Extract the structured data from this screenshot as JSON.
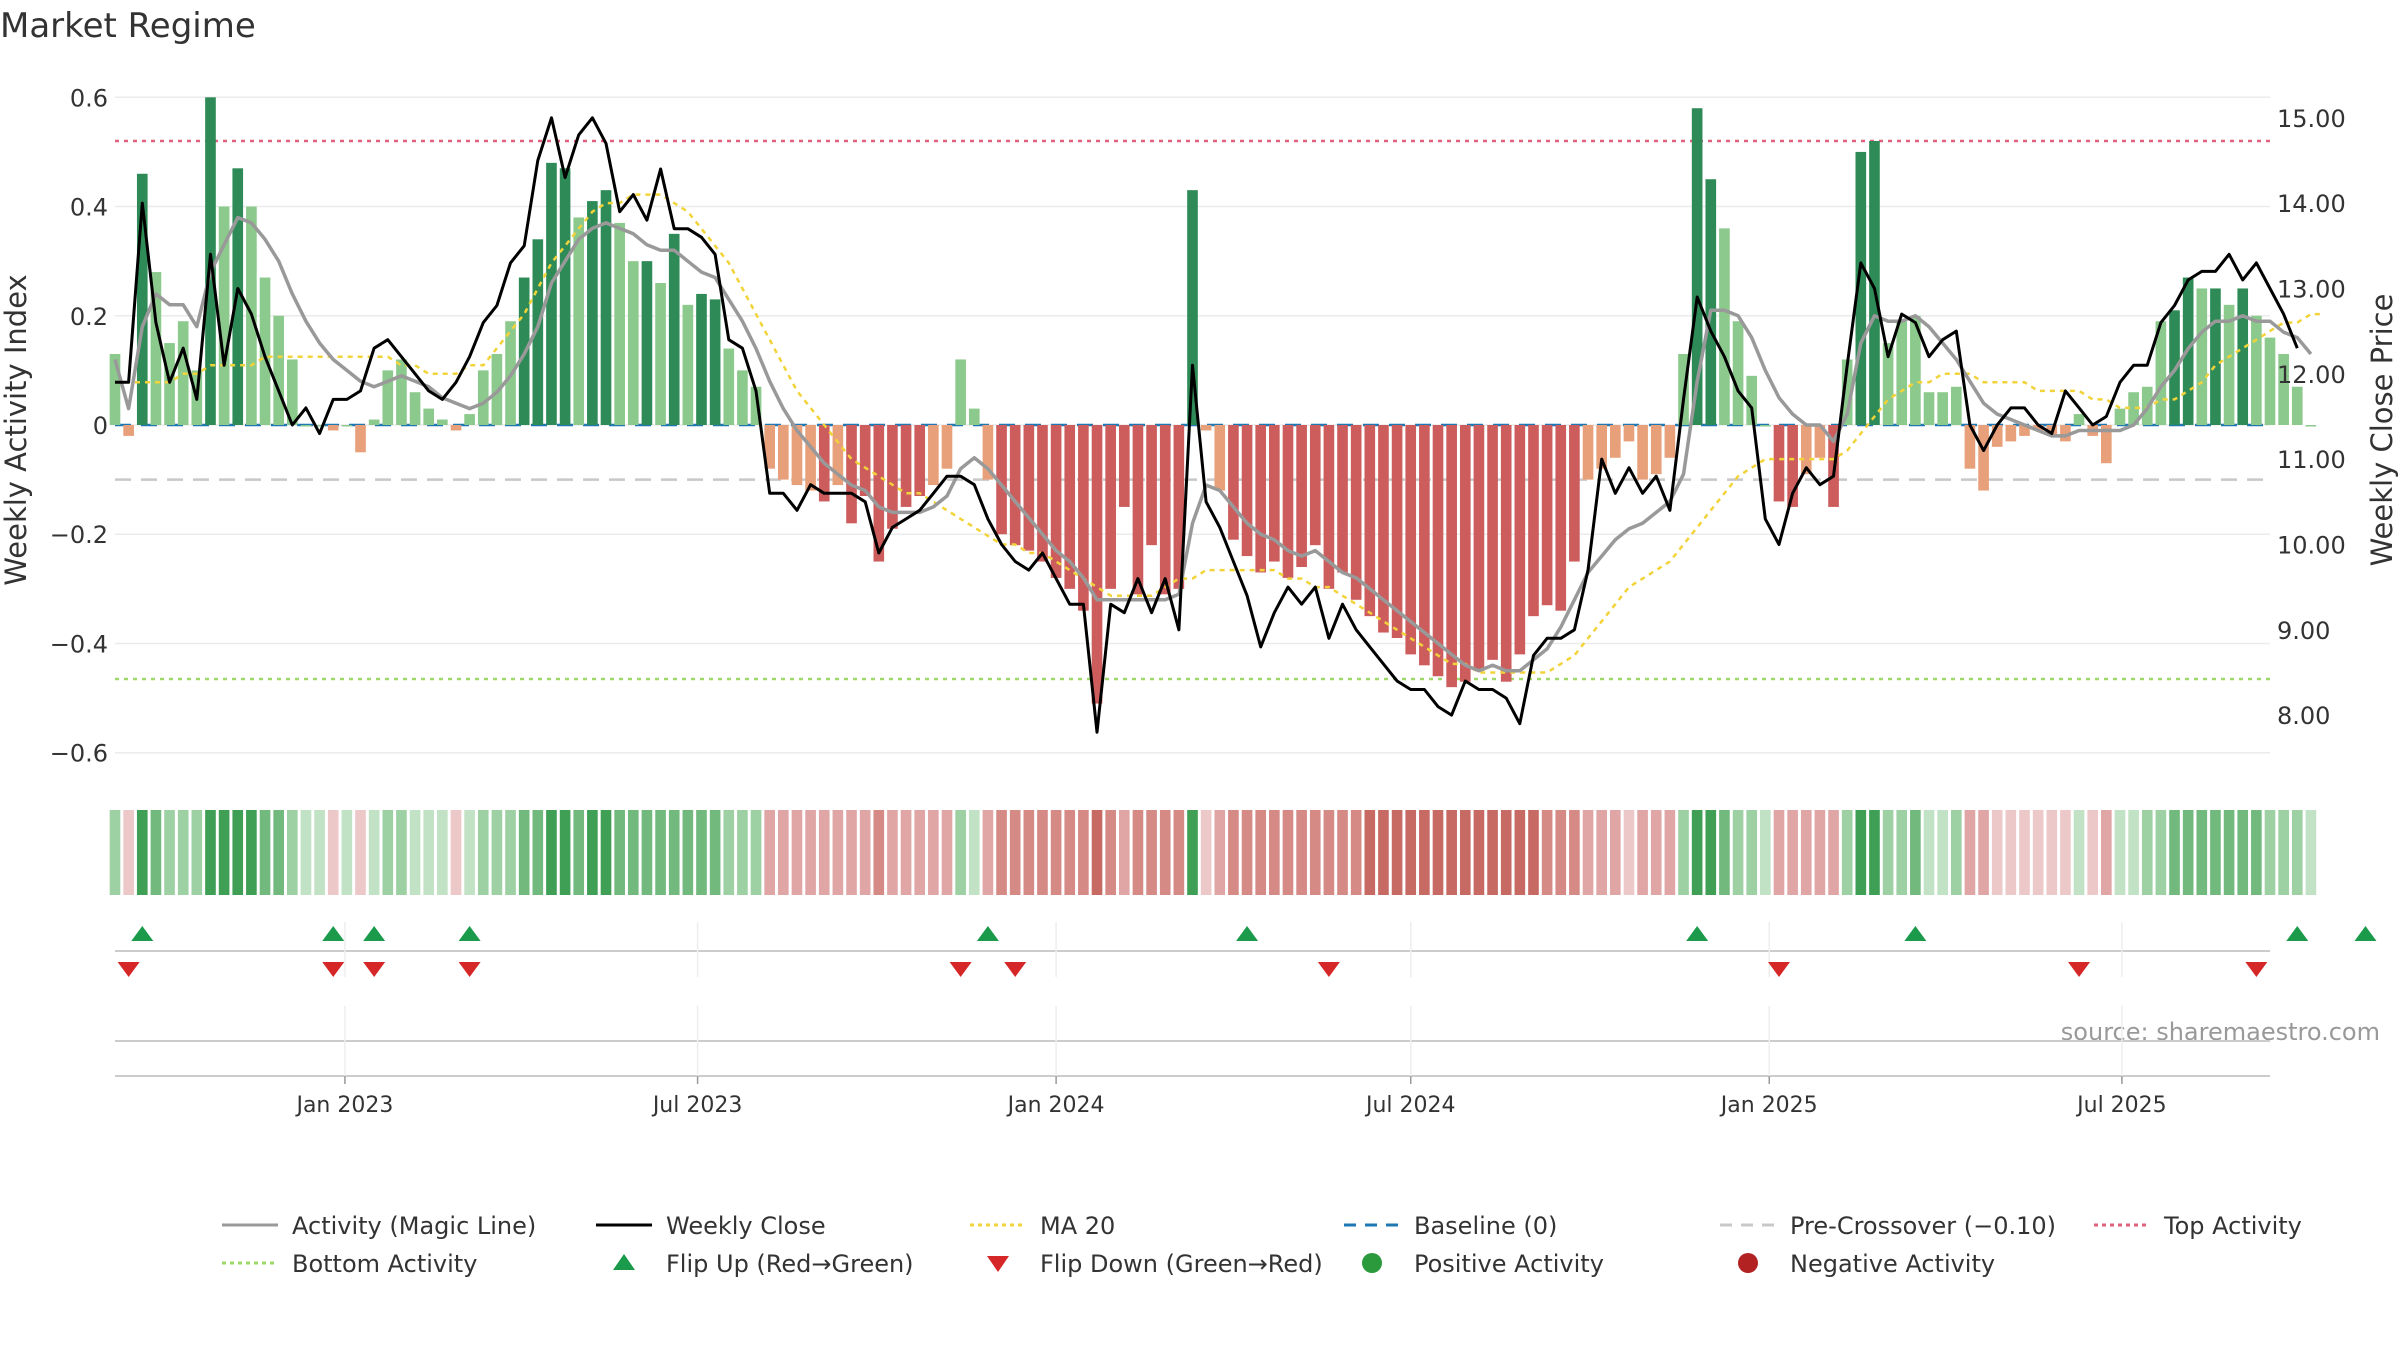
{
  "chart_data": {
    "type": "bar",
    "title": "Market Regime",
    "ylabel_left": "Weekly Activity Index",
    "ylabel_right": "Weekly Close Price",
    "source": "source: sharemaestro.com",
    "ylim_left": [
      -0.65,
      0.65
    ],
    "ylim_right": [
      7.24,
      15.56
    ],
    "yticks_left": [
      {
        "v": 0.6,
        "label": "0.6"
      },
      {
        "v": 0.4,
        "label": "0.4"
      },
      {
        "v": 0.2,
        "label": "0.2"
      },
      {
        "v": 0,
        "label": "0"
      },
      {
        "v": -0.2,
        "label": "−0.2"
      },
      {
        "v": -0.4,
        "label": "−0.4"
      },
      {
        "v": -0.6,
        "label": "−0.6"
      }
    ],
    "yticks_right": [
      {
        "v": 15,
        "label": "15.00"
      },
      {
        "v": 14,
        "label": "14.00"
      },
      {
        "v": 13,
        "label": "13.00"
      },
      {
        "v": 12,
        "label": "12.00"
      },
      {
        "v": 11,
        "label": "11.00"
      },
      {
        "v": 10,
        "label": "10.00"
      },
      {
        "v": 9,
        "label": "9.00"
      },
      {
        "v": 8,
        "label": "8.00"
      }
    ],
    "x_start": "2022-09-05",
    "x_end": "2025-09-15",
    "xticks": [
      {
        "date": "2023-01-01",
        "label": "Jan 2023"
      },
      {
        "date": "2023-07-01",
        "label": "Jul 2023"
      },
      {
        "date": "2024-01-01",
        "label": "Jan 2024"
      },
      {
        "date": "2024-07-01",
        "label": "Jul 2024"
      },
      {
        "date": "2025-01-01",
        "label": "Jan 2025"
      },
      {
        "date": "2025-07-01",
        "label": "Jul 2025"
      }
    ],
    "first_week": "2022-09-05",
    "week_step_days": 7,
    "activity": [
      0.13,
      -0.02,
      0.46,
      0.28,
      0.15,
      0.19,
      0.1,
      0.6,
      0.4,
      0.47,
      0.4,
      0.27,
      0.2,
      0.12,
      0.0,
      0.0,
      -0.01,
      0.0,
      -0.05,
      0.01,
      0.1,
      0.12,
      0.06,
      0.03,
      0.01,
      -0.01,
      0.02,
      0.1,
      0.13,
      0.19,
      0.27,
      0.34,
      0.48,
      0.47,
      0.38,
      0.41,
      0.43,
      0.37,
      0.3,
      0.3,
      0.26,
      0.35,
      0.22,
      0.24,
      0.23,
      0.14,
      0.1,
      0.07,
      -0.08,
      -0.1,
      -0.11,
      -0.12,
      -0.14,
      -0.11,
      -0.18,
      -0.13,
      -0.25,
      -0.19,
      -0.15,
      -0.13,
      -0.11,
      -0.08,
      0.12,
      0.03,
      -0.1,
      -0.2,
      -0.22,
      -0.23,
      -0.25,
      -0.28,
      -0.3,
      -0.34,
      -0.51,
      -0.3,
      -0.15,
      -0.31,
      -0.22,
      -0.31,
      -0.3,
      0.43,
      -0.01,
      -0.12,
      -0.21,
      -0.24,
      -0.27,
      -0.25,
      -0.28,
      -0.26,
      -0.22,
      -0.3,
      -0.27,
      -0.32,
      -0.35,
      -0.38,
      -0.39,
      -0.42,
      -0.44,
      -0.46,
      -0.48,
      -0.47,
      -0.45,
      -0.43,
      -0.47,
      -0.42,
      -0.35,
      -0.33,
      -0.34,
      -0.25,
      -0.1,
      -0.08,
      -0.06,
      -0.03,
      -0.1,
      -0.09,
      -0.06,
      0.13,
      0.58,
      0.45,
      0.36,
      0.19,
      0.09,
      0.0,
      -0.14,
      -0.15,
      -0.09,
      -0.06,
      -0.15,
      0.12,
      0.5,
      0.52,
      0.15,
      0.19,
      0.2,
      0.06,
      0.06,
      0.07,
      -0.08,
      -0.12,
      -0.04,
      -0.03,
      -0.02,
      -0.01,
      -0.02,
      -0.03,
      0.02,
      -0.02,
      -0.07,
      0.03,
      0.06,
      0.07,
      0.19,
      0.21,
      0.27,
      0.25,
      0.25,
      0.22,
      0.25,
      0.2,
      0.16,
      0.13,
      0.07,
      0.0
    ],
    "close": [
      11.9,
      11.9,
      14.0,
      12.6,
      11.9,
      12.3,
      11.7,
      13.4,
      12.1,
      13.0,
      12.7,
      12.2,
      11.8,
      11.4,
      11.6,
      11.3,
      11.7,
      11.7,
      11.8,
      12.3,
      12.4,
      12.2,
      12.0,
      11.8,
      11.7,
      11.9,
      12.2,
      12.6,
      12.8,
      13.3,
      13.5,
      14.5,
      15.0,
      14.3,
      14.8,
      15.0,
      14.7,
      13.9,
      14.1,
      13.8,
      14.4,
      13.7,
      13.7,
      13.6,
      13.4,
      12.4,
      12.3,
      11.8,
      10.6,
      10.6,
      10.4,
      10.7,
      10.6,
      10.6,
      10.6,
      10.5,
      9.9,
      10.2,
      10.3,
      10.4,
      10.6,
      10.8,
      10.8,
      10.7,
      10.3,
      10.0,
      9.8,
      9.7,
      9.9,
      9.6,
      9.3,
      9.3,
      7.8,
      9.3,
      9.2,
      9.6,
      9.2,
      9.6,
      9.0,
      12.1,
      10.5,
      10.2,
      9.8,
      9.4,
      8.8,
      9.2,
      9.5,
      9.3,
      9.5,
      8.9,
      9.3,
      9.0,
      8.8,
      8.6,
      8.4,
      8.3,
      8.3,
      8.1,
      8.0,
      8.4,
      8.3,
      8.3,
      8.2,
      7.9,
      8.7,
      8.9,
      8.9,
      9.0,
      9.7,
      11.0,
      10.6,
      10.9,
      10.6,
      10.8,
      10.4,
      11.7,
      12.9,
      12.5,
      12.2,
      11.8,
      11.6,
      10.3,
      10.0,
      10.6,
      10.9,
      10.7,
      10.8,
      12.1,
      13.3,
      13.0,
      12.2,
      12.7,
      12.6,
      12.2,
      12.4,
      12.5,
      11.4,
      11.1,
      11.4,
      11.6,
      11.6,
      11.4,
      11.3,
      11.8,
      11.6,
      11.4,
      11.5,
      11.9,
      12.1,
      12.1,
      12.6,
      12.8,
      13.1,
      13.2,
      13.2,
      13.4,
      13.1,
      13.3,
      13.0,
      12.7,
      12.3
    ],
    "ma20": [
      11.9,
      11.9,
      11.9,
      11.9,
      11.9,
      12.0,
      12.0,
      12.1,
      12.1,
      12.1,
      12.1,
      12.2,
      12.2,
      12.2,
      12.2,
      12.2,
      12.2,
      12.2,
      12.2,
      12.2,
      12.2,
      12.1,
      12.1,
      12.0,
      12.0,
      12.0,
      12.1,
      12.1,
      12.3,
      12.5,
      12.7,
      13.0,
      13.3,
      13.5,
      13.7,
      13.9,
      14.0,
      14.0,
      14.1,
      14.1,
      14.1,
      14.0,
      13.9,
      13.7,
      13.5,
      13.3,
      13.0,
      12.7,
      12.4,
      12.1,
      11.8,
      11.6,
      11.4,
      11.2,
      11.0,
      10.9,
      10.8,
      10.7,
      10.6,
      10.6,
      10.5,
      10.4,
      10.3,
      10.2,
      10.1,
      10.0,
      10.0,
      9.9,
      9.9,
      9.8,
      9.7,
      9.6,
      9.5,
      9.4,
      9.4,
      9.4,
      9.4,
      9.5,
      9.6,
      9.6,
      9.7,
      9.7,
      9.7,
      9.7,
      9.7,
      9.7,
      9.6,
      9.6,
      9.5,
      9.5,
      9.4,
      9.3,
      9.2,
      9.1,
      9.0,
      8.9,
      8.8,
      8.7,
      8.6,
      8.6,
      8.5,
      8.5,
      8.5,
      8.5,
      8.5,
      8.5,
      8.6,
      8.7,
      8.9,
      9.1,
      9.3,
      9.5,
      9.6,
      9.7,
      9.8,
      10.0,
      10.2,
      10.4,
      10.6,
      10.8,
      10.9,
      11.0,
      11.0,
      11.0,
      11.0,
      11.0,
      11.0,
      11.1,
      11.3,
      11.5,
      11.7,
      11.8,
      11.9,
      11.9,
      12.0,
      12.0,
      12.0,
      11.9,
      11.9,
      11.9,
      11.9,
      11.8,
      11.8,
      11.8,
      11.8,
      11.7,
      11.7,
      11.6,
      11.6,
      11.6,
      11.7,
      11.7,
      11.8,
      11.9,
      12.1,
      12.2,
      12.3,
      12.4,
      12.5,
      12.6,
      12.6,
      12.7,
      12.7
    ],
    "magic_line": [
      0.12,
      0.03,
      0.18,
      0.24,
      0.22,
      0.22,
      0.18,
      0.28,
      0.33,
      0.38,
      0.37,
      0.34,
      0.3,
      0.24,
      0.19,
      0.15,
      0.12,
      0.1,
      0.08,
      0.07,
      0.08,
      0.09,
      0.08,
      0.07,
      0.05,
      0.04,
      0.03,
      0.04,
      0.06,
      0.09,
      0.13,
      0.18,
      0.26,
      0.3,
      0.34,
      0.36,
      0.37,
      0.36,
      0.35,
      0.33,
      0.32,
      0.32,
      0.3,
      0.28,
      0.27,
      0.23,
      0.19,
      0.14,
      0.08,
      0.03,
      -0.01,
      -0.04,
      -0.07,
      -0.09,
      -0.11,
      -0.12,
      -0.15,
      -0.16,
      -0.16,
      -0.16,
      -0.15,
      -0.13,
      -0.08,
      -0.06,
      -0.08,
      -0.11,
      -0.14,
      -0.17,
      -0.2,
      -0.23,
      -0.25,
      -0.28,
      -0.32,
      -0.32,
      -0.32,
      -0.32,
      -0.32,
      -0.32,
      -0.31,
      -0.18,
      -0.11,
      -0.12,
      -0.15,
      -0.18,
      -0.2,
      -0.21,
      -0.23,
      -0.24,
      -0.23,
      -0.25,
      -0.27,
      -0.28,
      -0.3,
      -0.32,
      -0.34,
      -0.36,
      -0.38,
      -0.4,
      -0.42,
      -0.44,
      -0.45,
      -0.44,
      -0.45,
      -0.45,
      -0.43,
      -0.41,
      -0.37,
      -0.32,
      -0.27,
      -0.24,
      -0.21,
      -0.19,
      -0.18,
      -0.16,
      -0.14,
      -0.09,
      0.08,
      0.21,
      0.21,
      0.2,
      0.16,
      0.1,
      0.05,
      0.02,
      0.0,
      0.0,
      -0.03,
      0.02,
      0.15,
      0.2,
      0.19,
      0.19,
      0.2,
      0.18,
      0.15,
      0.12,
      0.08,
      0.04,
      0.02,
      0.01,
      0.0,
      -0.01,
      -0.02,
      -0.02,
      -0.01,
      -0.01,
      -0.01,
      -0.01,
      0.0,
      0.03,
      0.07,
      0.1,
      0.14,
      0.17,
      0.19,
      0.19,
      0.2,
      0.19,
      0.19,
      0.17,
      0.16,
      0.13
    ],
    "levels": {
      "baseline": 0,
      "pre_crossover": -0.1,
      "top": 0.52,
      "bottom": -0.465
    },
    "flip_up_weeks": [
      2,
      16,
      19,
      26,
      64,
      83,
      116,
      132,
      160,
      165
    ],
    "flip_down_weeks": [
      1,
      16,
      19,
      26,
      62,
      66,
      89,
      122,
      144,
      157
    ],
    "legend": [
      {
        "label": "Activity (Magic Line)",
        "kind": "line",
        "color": "#999999"
      },
      {
        "label": "Weekly Close",
        "kind": "line",
        "color": "#000000"
      },
      {
        "label": "MA 20",
        "kind": "dotted",
        "color": "#f2d33a"
      },
      {
        "label": "Baseline (0)",
        "kind": "dashed",
        "color": "#1f77b4"
      },
      {
        "label": "Pre-Crossover (−0.10)",
        "kind": "dashed",
        "color": "#c8c8c8"
      },
      {
        "label": "Top Activity",
        "kind": "dotted",
        "color": "#e0607e"
      },
      {
        "label": "Bottom Activity",
        "kind": "dotted",
        "color": "#9fd86a"
      },
      {
        "label": "Flip Up (Red→Green)",
        "kind": "tri-up",
        "color": "#1a9a4a"
      },
      {
        "label": "Flip Down (Green→Red)",
        "kind": "tri-down",
        "color": "#d62728"
      },
      {
        "label": "Positive Activity",
        "kind": "dot",
        "color": "#2a9a3c"
      },
      {
        "label": "Negative Activity",
        "kind": "dot",
        "color": "#b22222"
      }
    ],
    "legend_placement": "bottom",
    "colors": {
      "pos_strong": "#2e8b57",
      "pos_light": "#8cc98c",
      "neg_strong": "#cd5c5c",
      "neg_light": "#e8a07a",
      "close": "#000000",
      "magic_line": "#999999",
      "ma20": "#f2d33a",
      "grid": "#ebebeb"
    }
  }
}
